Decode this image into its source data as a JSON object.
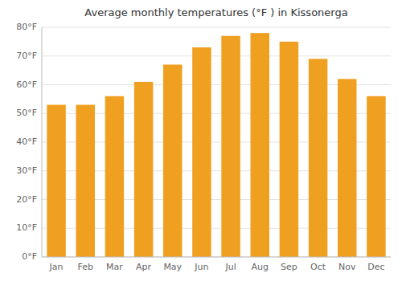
{
  "chart_data": {
    "type": "bar",
    "title": "Average monthly temperatures (°F ) in Kissonerga",
    "categories": [
      "Jan",
      "Feb",
      "Mar",
      "Apr",
      "May",
      "Jun",
      "Jul",
      "Aug",
      "Sep",
      "Oct",
      "Nov",
      "Dec"
    ],
    "values": [
      53,
      53,
      56,
      61,
      67,
      73,
      77,
      78,
      75,
      69,
      62,
      56
    ],
    "color": "#F0A020",
    "ylim": [
      0,
      80
    ],
    "yticks": [
      {
        "value": 0,
        "label": "0°F"
      },
      {
        "value": 10,
        "label": "10°F"
      },
      {
        "value": 20,
        "label": "20°F"
      },
      {
        "value": 30,
        "label": "30°F"
      },
      {
        "value": 40,
        "label": "40°F"
      },
      {
        "value": 50,
        "label": "50°F"
      },
      {
        "value": 60,
        "label": "60°F"
      },
      {
        "value": 70,
        "label": "70°F"
      },
      {
        "value": 80,
        "label": "80°F"
      }
    ],
    "grid": true
  }
}
